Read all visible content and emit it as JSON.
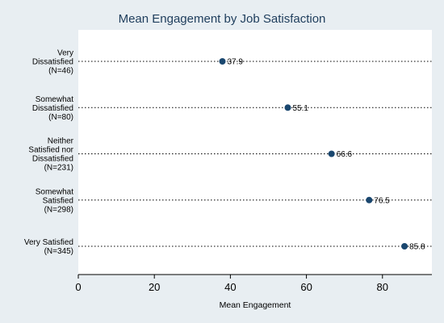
{
  "chart_data": {
    "type": "dot",
    "title": "Mean Engagement by Job Satisfaction",
    "xlabel": "Mean Engagement",
    "ylabel": "",
    "xlim": [
      0,
      93
    ],
    "xticks": [
      "0",
      "20",
      "40",
      "60",
      "80"
    ],
    "categories": [
      [
        "Very",
        "Dissatisfied",
        "(N=46)"
      ],
      [
        "Somewhat",
        "Dissatisfied",
        "(N=80)"
      ],
      [
        "Neither",
        "Satisfied nor",
        "Dissatisfied",
        "(N=231)"
      ],
      [
        "Somewhat",
        "Satisfied",
        "(N=298)"
      ],
      [
        "Very Satisfied",
        "(N=345)"
      ]
    ],
    "values": [
      37.9,
      55.1,
      66.6,
      76.5,
      85.8
    ],
    "value_labels": [
      "37.9",
      "55.1",
      "66.6",
      "76.5",
      "85.8"
    ],
    "grid": false,
    "colors": {
      "background": "#e8eef2",
      "plot_background": "#ffffff",
      "marker": "#1a476f",
      "title": "#1e3d5c",
      "dotted_line": "#000000"
    }
  }
}
